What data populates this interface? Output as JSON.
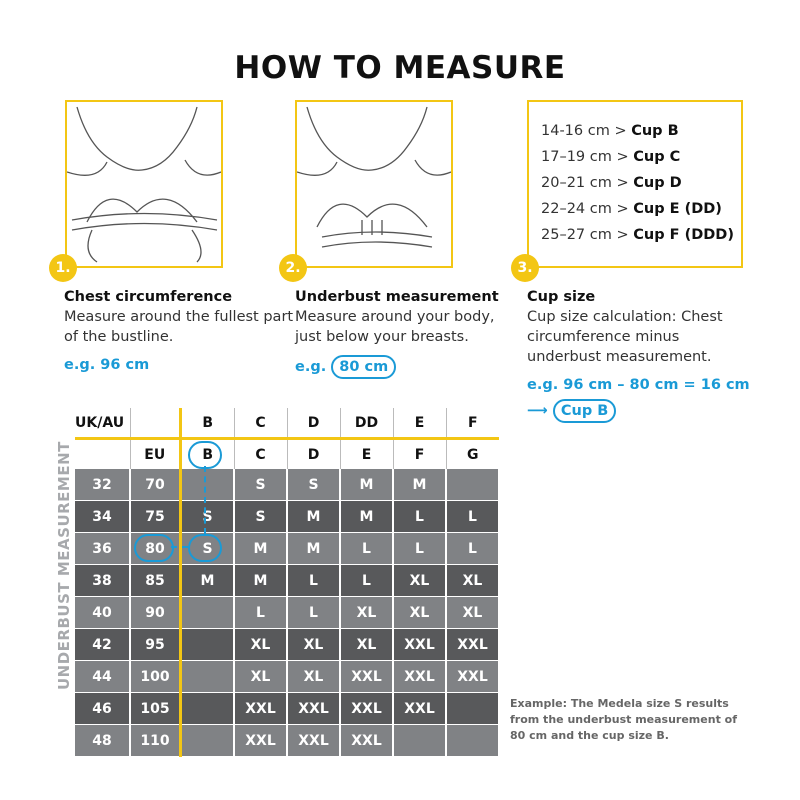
{
  "title": "HOW TO MEASURE",
  "steps": [
    {
      "num": "1.",
      "heading": "Chest circumference",
      "desc": "Measure around the fullest part of the bustline.",
      "example": "e.g. 96 cm"
    },
    {
      "num": "2.",
      "heading": "Underbust measurement",
      "desc": "Measure around your body, just below your breasts.",
      "example_prefix": "e.g.",
      "example_value": "80 cm"
    },
    {
      "num": "3.",
      "heading": "Cup size",
      "desc": "Cup size calculation: Chest circumference minus underbust measurement.",
      "example": "e.g. 96 cm – 80 cm = 16 cm",
      "result": "Cup B"
    }
  ],
  "cup_ranges": [
    {
      "range": "14-16 cm >",
      "cup": "Cup B"
    },
    {
      "range": "17–19 cm >",
      "cup": "Cup C"
    },
    {
      "range": "20–21 cm >",
      "cup": "Cup D"
    },
    {
      "range": "22–24 cm >",
      "cup": "Cup E (DD)"
    },
    {
      "range": "25–27 cm >",
      "cup": "Cup F (DDD)"
    }
  ],
  "table": {
    "side_label": "UNDERBUST MEASUREMENT",
    "header_uk": [
      "UK/AU",
      "",
      "B",
      "C",
      "D",
      "DD",
      "E",
      "F"
    ],
    "header_eu": [
      "",
      "EU",
      "B",
      "C",
      "D",
      "E",
      "F",
      "G"
    ],
    "rows": [
      [
        "32",
        "70",
        "",
        "S",
        "S",
        "M",
        "M",
        ""
      ],
      [
        "34",
        "75",
        "S",
        "S",
        "M",
        "M",
        "L",
        "L"
      ],
      [
        "36",
        "80",
        "S",
        "M",
        "M",
        "L",
        "L",
        "L"
      ],
      [
        "38",
        "85",
        "M",
        "M",
        "L",
        "L",
        "XL",
        "XL"
      ],
      [
        "40",
        "90",
        "",
        "L",
        "L",
        "XL",
        "XL",
        "XL"
      ],
      [
        "42",
        "95",
        "",
        "XL",
        "XL",
        "XL",
        "XXL",
        "XXL"
      ],
      [
        "44",
        "100",
        "",
        "XL",
        "XL",
        "XXL",
        "XXL",
        "XXL"
      ],
      [
        "46",
        "105",
        "",
        "XXL",
        "XXL",
        "XXL",
        "XXL",
        ""
      ],
      [
        "48",
        "110",
        "",
        "XXL",
        "XXL",
        "XXL",
        "",
        ""
      ]
    ]
  },
  "note": "Example: The Medela size S results from the underbust measurement of 80 cm and the cup size B.",
  "colors": {
    "accent": "#f3c614",
    "highlight": "#1a9ad6",
    "row_light": "#808285",
    "row_dark": "#58595b"
  }
}
